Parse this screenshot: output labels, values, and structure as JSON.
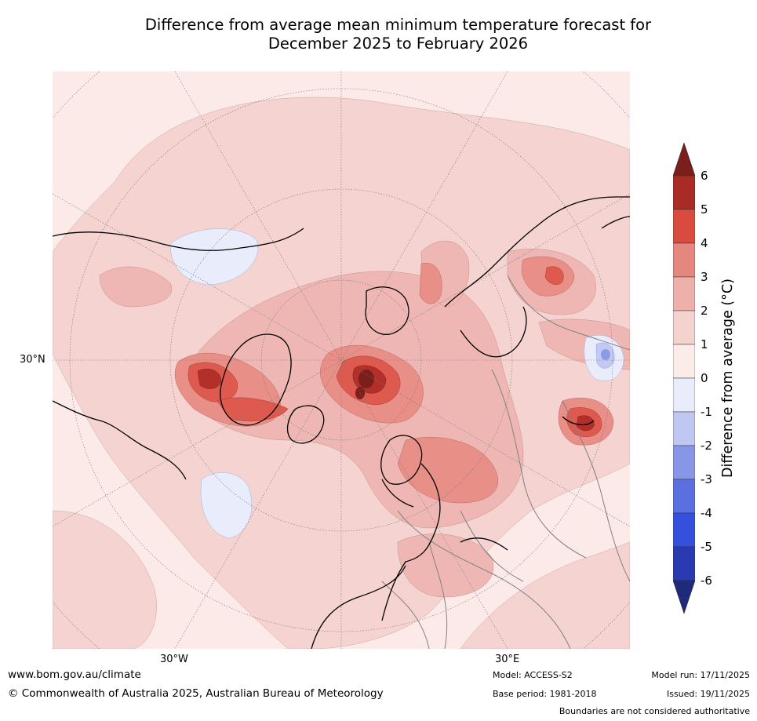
{
  "title": {
    "line1": "Difference from average mean minimum temperature forecast for",
    "line2": "December 2025 to February 2026"
  },
  "map": {
    "projection_labels": {
      "lat_30n": "30°N",
      "lon_30w": "30°W",
      "lon_30e": "30°E"
    },
    "colors": {
      "ocean_base": "#fbeae8",
      "light_warm": "#f4d3d0",
      "warm_1": "#efb7b3",
      "warm_2": "#e88f88",
      "warm_3": "#de5a4e",
      "warm_4": "#b3302a",
      "warm_5": "#7a1f1c",
      "cool_1": "#e8ecfb",
      "cool_2": "#c3c9f2",
      "cool_3": "#8d9ae8",
      "coast": "#000000",
      "border": "#808080",
      "grid": "#777777"
    }
  },
  "colorbar": {
    "label": "Difference from average (°C)",
    "ticks": [
      "6",
      "5",
      "4",
      "3",
      "2",
      "1",
      "0",
      "-1",
      "-2",
      "-3",
      "-4",
      "-5",
      "-6"
    ],
    "bins": [
      "#a82b25",
      "#d94b3f",
      "#e6877f",
      "#eeb0aa",
      "#f4d3cf",
      "#fbecea",
      "#e8ecfb",
      "#c0c7f0",
      "#8896e8",
      "#5a70e0",
      "#3550dc",
      "#2a3ab0"
    ],
    "top_arrow_color": "#7a1f1c",
    "bottom_arrow_color": "#1f2a7a"
  },
  "footer": {
    "url": "www.bom.gov.au/climate",
    "copyright": "© Commonwealth of Australia 2025, Australian Bureau of Meteorology",
    "model": "Model: ACCESS-S2",
    "base_period": "Base period: 1981-2018",
    "model_run": "Model run: 17/11/2025",
    "issued": "Issued: 19/11/2025",
    "disclaimer": "Boundaries are not considered authoritative"
  }
}
